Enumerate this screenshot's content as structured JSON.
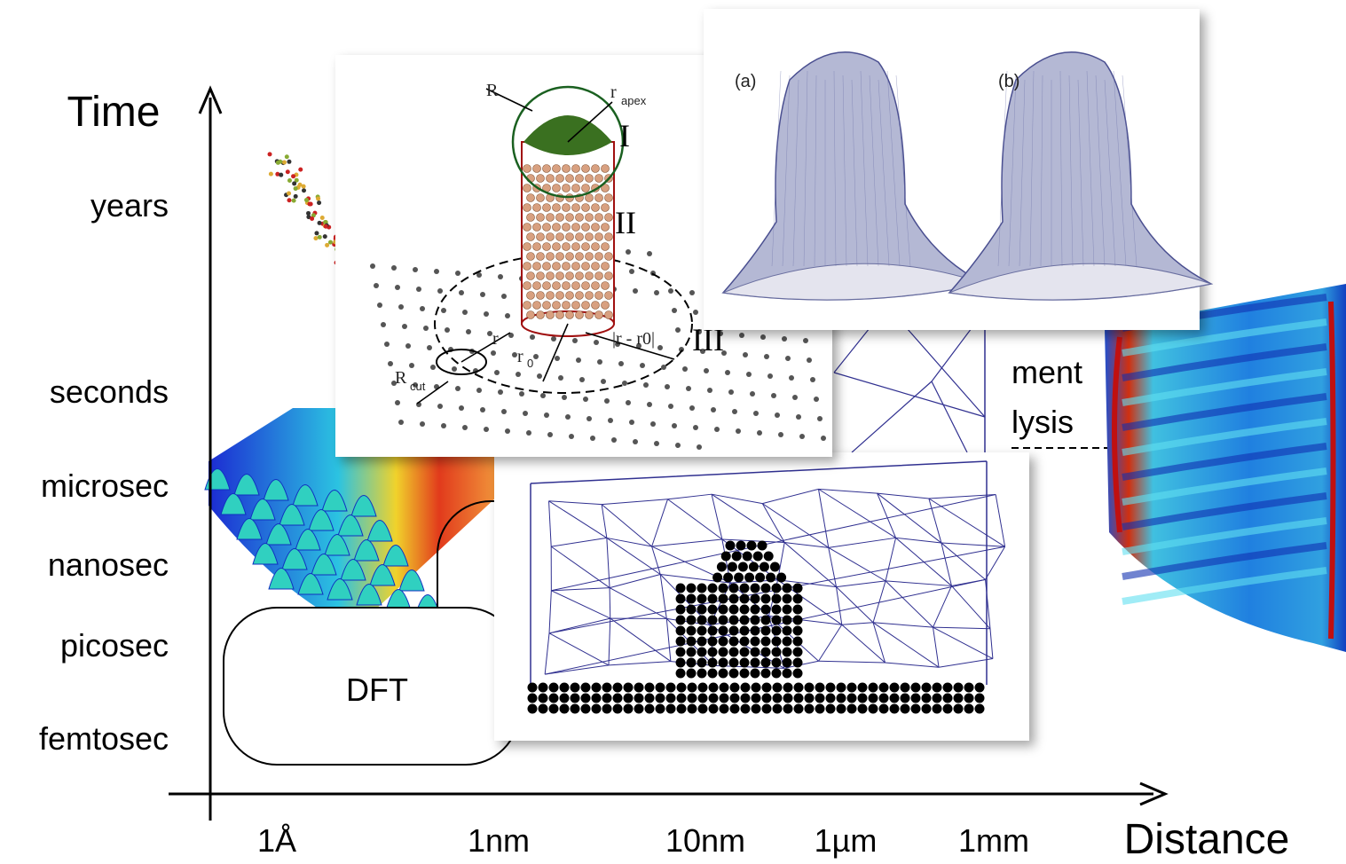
{
  "axes": {
    "y_label": "Time",
    "x_label": "Distance",
    "y_ticks": [
      "years",
      "seconds",
      "microsec",
      "nanosec",
      "picosec",
      "femtosec"
    ],
    "x_ticks": [
      "1Å",
      "1nm",
      "10nm",
      "1µm",
      "1mm"
    ]
  },
  "regions": {
    "dft": "DFT"
  },
  "hidden_text": [
    "ment",
    "lysis"
  ],
  "tip_inset": {
    "radius": "R",
    "apex": {
      "base": "r",
      "sub": "apex"
    },
    "zone_1": "I",
    "zone_2": "II",
    "zone_3": "III",
    "r": "r",
    "r0": {
      "base": "r",
      "sub": "0"
    },
    "diff": "|r - r0|",
    "rcut": {
      "base": "R",
      "sub": "cut"
    }
  },
  "mesh_inset": {
    "a": "(a)",
    "b": "(b)"
  }
}
